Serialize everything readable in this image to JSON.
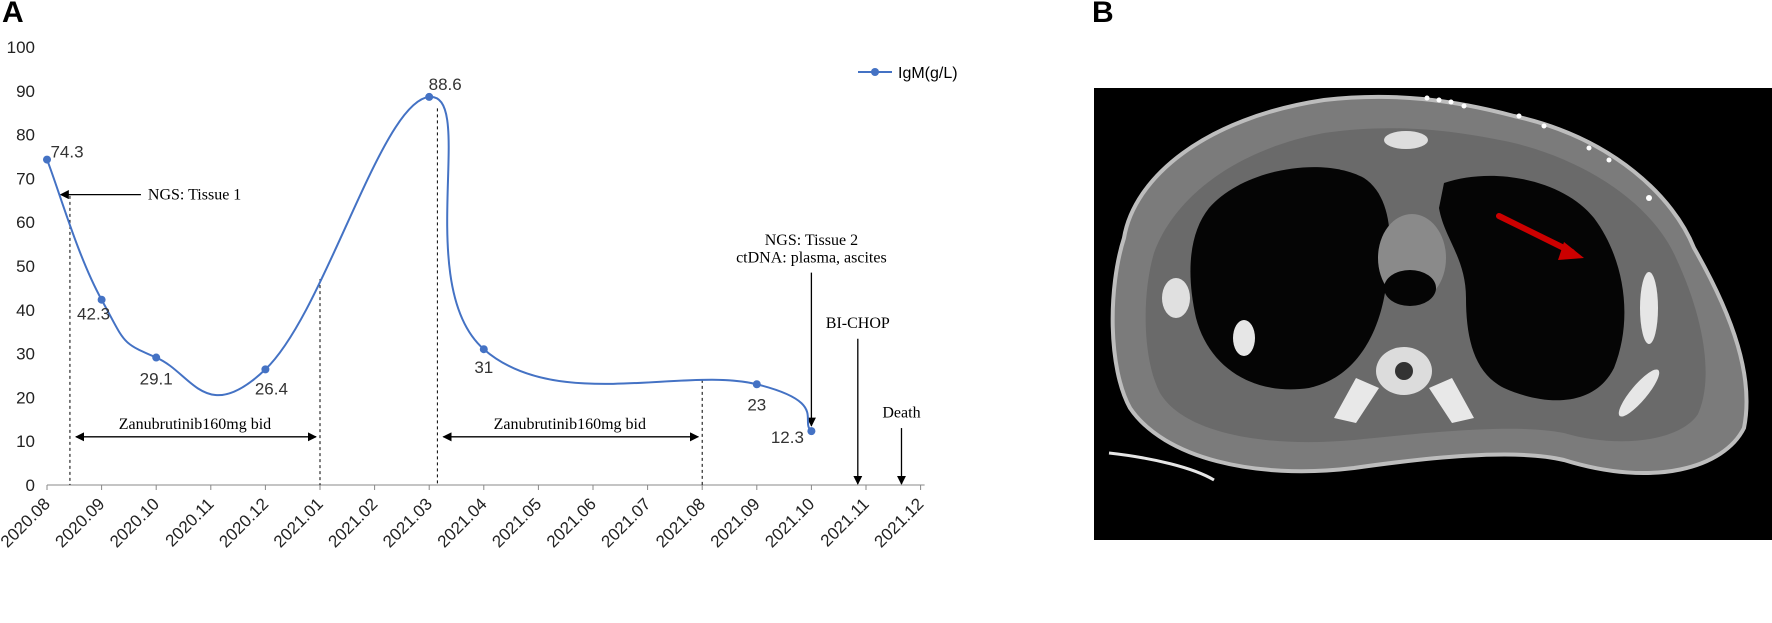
{
  "panels": {
    "a_label": "A",
    "b_label": "B"
  },
  "chart_data": {
    "type": "line",
    "title": "",
    "xlabel": "",
    "ylabel": "",
    "ylim": [
      0,
      100
    ],
    "yticks": [
      "0",
      "10",
      "20",
      "30",
      "40",
      "50",
      "60",
      "70",
      "80",
      "90",
      "100"
    ],
    "categories": [
      "2020.08",
      "2020.09",
      "2020.10",
      "2020.11",
      "2020.12",
      "2021.01",
      "2021.02",
      "2021.03",
      "2021.04",
      "2021.05",
      "2021.06",
      "2021.07",
      "2021.08",
      "2021.09",
      "2021.10",
      "2021.11",
      "2021.12"
    ],
    "grid": false,
    "legend": "top-right",
    "series": [
      {
        "name": "IgM(g/L)",
        "color": "#4472C4",
        "points": [
          {
            "x": "2020.08",
            "y": 74.3,
            "label": "74.3"
          },
          {
            "x": "2020.09",
            "y": 42.3,
            "label": "42.3"
          },
          {
            "x": "2020.10",
            "y": 29.1,
            "label": "29.1"
          },
          {
            "x": "2020.12",
            "y": 26.4,
            "label": "26.4"
          },
          {
            "x": "2021.03",
            "y": 88.6,
            "label": "88.6"
          },
          {
            "x": "2021.04",
            "y": 31,
            "label": "31"
          },
          {
            "x": "2021.09",
            "y": 23,
            "label": "23"
          },
          {
            "x": "2021.10",
            "y": 12.3,
            "label": "12.3"
          }
        ]
      }
    ],
    "annotations": {
      "ngs_tissue1": "NGS: Tissue 1",
      "ngs_tissue2": "NGS: Tissue 2",
      "ctdna": "ctDNA: plasma, ascites",
      "treatment1": "Zanubrutinib160mg bid",
      "treatment2": "Zanubrutinib160mg bid",
      "bichop": "BI-CHOP",
      "death": "Death"
    }
  },
  "image_b": {
    "annotation_arrow_color": "#cc0000"
  }
}
